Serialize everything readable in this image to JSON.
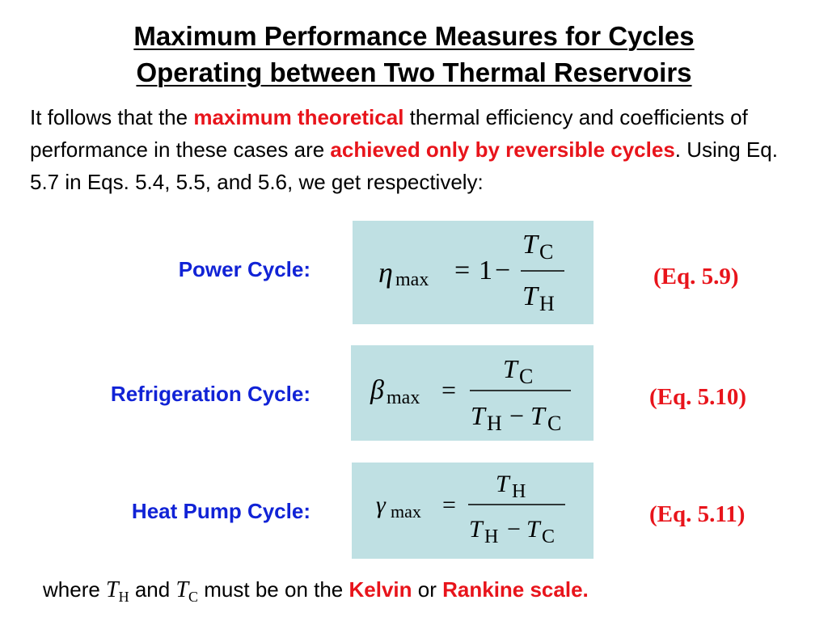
{
  "title": {
    "line1": "Maximum Performance Measures for Cycles",
    "line2": "Operating between Two Thermal Reservoirs"
  },
  "intro": {
    "t1": "It follows that the ",
    "h1": "maximum theoretical",
    "t2": " thermal efficiency and coefficients of performance in these cases are ",
    "h2": "achieved only by reversible cycles",
    "t3": ".  Using Eq. 5.7 in Eqs. 5.4, 5.5, and 5.6, we get respectively:"
  },
  "equations": [
    {
      "label": "Power Cycle:",
      "symbol": "η",
      "sub": "max",
      "eq": "=",
      "prefix": "1",
      "minus": "−",
      "num_T": "T",
      "num_sub": "C",
      "den_T1": "T",
      "den_sub1": "H",
      "den_minus": "",
      "den_T2": "",
      "den_sub2": "",
      "ref": "(Eq. 5.9)"
    },
    {
      "label": "Refrigeration Cycle:",
      "symbol": "β",
      "sub": "max",
      "eq": "=",
      "prefix": "",
      "minus": "",
      "num_T": "T",
      "num_sub": "C",
      "den_T1": "T",
      "den_sub1": "H",
      "den_minus": "−",
      "den_T2": "T",
      "den_sub2": "C",
      "ref": "(Eq. 5.10)"
    },
    {
      "label": "Heat Pump Cycle:",
      "symbol": "γ",
      "sub": "max",
      "eq": "=",
      "prefix": "",
      "minus": "",
      "num_T": "T",
      "num_sub": "H",
      "den_T1": "T",
      "den_sub1": "H",
      "den_minus": "−",
      "den_T2": "T",
      "den_sub2": "C",
      "ref": "(Eq. 5.11)"
    }
  ],
  "footer": {
    "t1": "where ",
    "v1": "T",
    "s1": "H",
    "t2": " and ",
    "v2": "T",
    "s2": "C",
    "t3": " must be on the ",
    "h1": "Kelvin",
    "t4": " or ",
    "h2": "Rankine scale",
    "t5": "."
  },
  "colors": {
    "heading": "#000000",
    "highlight": "#e8141b",
    "label": "#1123d6",
    "equation_box": "#bfe0e3"
  }
}
